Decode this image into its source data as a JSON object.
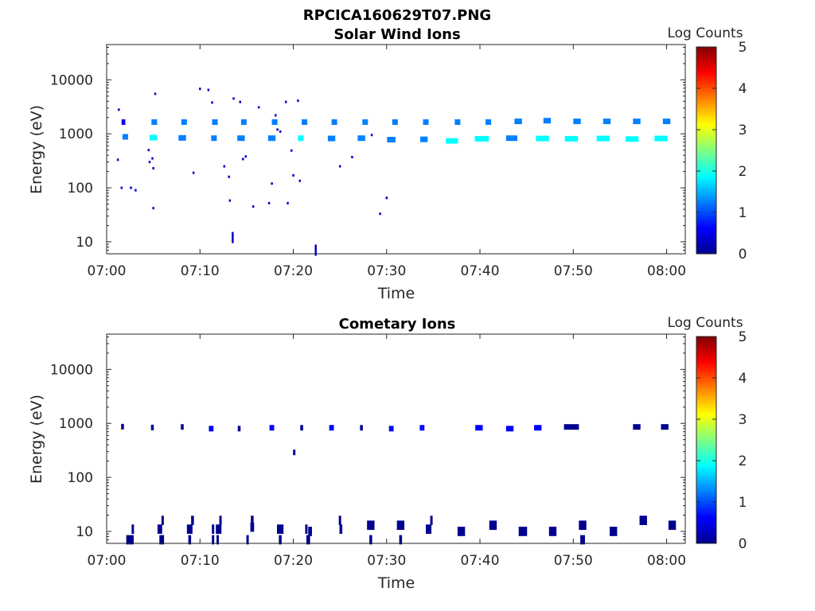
{
  "figure_title": "RPCICA160629T07.PNG",
  "colormap": [
    "#00008f",
    "#0000ff",
    "#0080ff",
    "#00ffff",
    "#80ff80",
    "#ffff00",
    "#ff8000",
    "#ff0000",
    "#800000"
  ],
  "chart_data": [
    {
      "type": "heatmap",
      "title": "Solar Wind Ions",
      "xlabel": "Time",
      "ylabel": "Energy (eV)",
      "x_unit": "minutes after 07:00",
      "xlim": [
        0,
        62
      ],
      "ylim": [
        6,
        45000
      ],
      "yscale": "log",
      "x_ticks": [
        0,
        10,
        20,
        30,
        40,
        50,
        60
      ],
      "x_tick_labels": [
        "07:00",
        "07:10",
        "07:20",
        "07:30",
        "07:40",
        "07:50",
        "08:00"
      ],
      "y_ticks": [
        10,
        100,
        1000,
        10000
      ],
      "y_tick_labels": [
        "10",
        "100",
        "1000",
        "10000"
      ],
      "colorbar": {
        "label": "Log Counts",
        "range": [
          0,
          5
        ],
        "ticks": [
          "0",
          "1",
          "2",
          "3",
          "4",
          "5"
        ]
      },
      "cells": [
        [
          1.8,
          1650,
          0.4,
          0.8
        ],
        [
          2.0,
          880,
          0.6,
          1.2
        ],
        [
          5.1,
          1650,
          0.6,
          1.0
        ],
        [
          5.0,
          850,
          0.8,
          1.6
        ],
        [
          8.3,
          1650,
          0.6,
          1.0
        ],
        [
          8.1,
          840,
          0.8,
          1.4
        ],
        [
          11.6,
          1650,
          0.6,
          1.0
        ],
        [
          11.5,
          830,
          0.6,
          1.2
        ],
        [
          14.7,
          1650,
          0.6,
          1.0
        ],
        [
          14.4,
          830,
          0.8,
          1.4
        ],
        [
          18.0,
          1650,
          0.6,
          1.0
        ],
        [
          17.7,
          830,
          0.8,
          1.4
        ],
        [
          21.2,
          1650,
          0.6,
          1.0
        ],
        [
          20.8,
          830,
          0.6,
          1.8
        ],
        [
          24.4,
          1650,
          0.6,
          1.0
        ],
        [
          24.1,
          820,
          0.8,
          1.4
        ],
        [
          27.7,
          1650,
          0.6,
          1.0
        ],
        [
          27.3,
          830,
          0.8,
          1.4
        ],
        [
          30.9,
          1650,
          0.6,
          1.0
        ],
        [
          30.5,
          780,
          0.9,
          1.4
        ],
        [
          34.2,
          1650,
          0.6,
          1.0
        ],
        [
          34.0,
          790,
          0.8,
          1.4
        ],
        [
          37.6,
          1650,
          0.6,
          1.0
        ],
        [
          37.0,
          740,
          1.3,
          1.6
        ],
        [
          40.9,
          1650,
          0.6,
          1.0
        ],
        [
          40.2,
          810,
          1.5,
          1.6
        ],
        [
          44.1,
          1700,
          0.8,
          1.0
        ],
        [
          43.4,
          830,
          1.2,
          1.4
        ],
        [
          47.2,
          1750,
          0.8,
          1.0
        ],
        [
          46.7,
          820,
          1.4,
          1.6
        ],
        [
          50.4,
          1700,
          0.8,
          1.0
        ],
        [
          49.8,
          810,
          1.4,
          1.6
        ],
        [
          53.6,
          1700,
          0.8,
          1.0
        ],
        [
          53.2,
          820,
          1.4,
          1.6
        ],
        [
          56.8,
          1700,
          0.8,
          1.0
        ],
        [
          56.3,
          800,
          1.4,
          1.6
        ],
        [
          60.0,
          1700,
          0.8,
          1.0
        ],
        [
          59.4,
          820,
          1.4,
          1.6
        ]
      ],
      "points": [
        [
          1.3,
          2800
        ],
        [
          1.2,
          330
        ],
        [
          1.6,
          100
        ],
        [
          2.6,
          100
        ],
        [
          3.1,
          90
        ],
        [
          4.5,
          500
        ],
        [
          4.6,
          300
        ],
        [
          4.9,
          350
        ],
        [
          5.0,
          230
        ],
        [
          5.2,
          5500
        ],
        [
          5.0,
          42
        ],
        [
          9.3,
          190
        ],
        [
          10.0,
          6800
        ],
        [
          10.9,
          6500
        ],
        [
          11.3,
          3800
        ],
        [
          12.6,
          250
        ],
        [
          13.1,
          160
        ],
        [
          13.6,
          4500
        ],
        [
          14.3,
          3900
        ],
        [
          14.6,
          340
        ],
        [
          14.9,
          380
        ],
        [
          15.7,
          45
        ],
        [
          16.3,
          3100
        ],
        [
          17.4,
          52
        ],
        [
          17.7,
          120
        ],
        [
          18.1,
          2200
        ],
        [
          18.3,
          1200
        ],
        [
          18.6,
          1100
        ],
        [
          19.2,
          3900
        ],
        [
          19.8,
          490
        ],
        [
          20.0,
          170
        ],
        [
          20.5,
          4100
        ],
        [
          20.7,
          135
        ],
        [
          19.4,
          52
        ],
        [
          25.0,
          250
        ],
        [
          26.3,
          370
        ],
        [
          28.4,
          950
        ],
        [
          29.3,
          33
        ],
        [
          30.0,
          65
        ],
        [
          13.2,
          58
        ],
        [
          13.5,
          12
        ],
        [
          22.4,
          7
        ]
      ]
    },
    {
      "type": "heatmap",
      "title": "Cometary Ions",
      "xlabel": "Time",
      "ylabel": "Energy (eV)",
      "x_unit": "minutes after 07:00",
      "xlim": [
        0,
        62
      ],
      "ylim": [
        6,
        45000
      ],
      "yscale": "log",
      "x_ticks": [
        0,
        10,
        20,
        30,
        40,
        50,
        60
      ],
      "x_tick_labels": [
        "07:00",
        "07:10",
        "07:20",
        "07:30",
        "07:40",
        "07:50",
        "08:00"
      ],
      "y_ticks": [
        10,
        100,
        1000,
        10000
      ],
      "y_tick_labels": [
        "10",
        "100",
        "1000",
        "10000"
      ],
      "colorbar": {
        "label": "Log Counts",
        "range": [
          0,
          5
        ],
        "ticks": [
          "0",
          "1",
          "2",
          "3",
          "4",
          "5"
        ]
      },
      "cells": [
        [
          1.7,
          870,
          0.3,
          0.3
        ],
        [
          4.9,
          840,
          0.3,
          0.3
        ],
        [
          8.1,
          860,
          0.3,
          0.3
        ],
        [
          11.2,
          800,
          0.5,
          0.4
        ],
        [
          14.2,
          800,
          0.3,
          0.3
        ],
        [
          17.7,
          830,
          0.5,
          0.4
        ],
        [
          20.9,
          830,
          0.3,
          0.3
        ],
        [
          24.1,
          830,
          0.5,
          0.4
        ],
        [
          27.3,
          830,
          0.3,
          0.3
        ],
        [
          30.5,
          800,
          0.5,
          0.4
        ],
        [
          33.8,
          830,
          0.5,
          0.4
        ],
        [
          39.9,
          830,
          0.8,
          0.4
        ],
        [
          43.2,
          800,
          0.8,
          0.4
        ],
        [
          46.2,
          830,
          0.8,
          0.4
        ],
        [
          49.8,
          860,
          1.6,
          0.3
        ],
        [
          56.8,
          860,
          0.8,
          0.3
        ],
        [
          59.8,
          860,
          0.8,
          0.3
        ],
        [
          20.1,
          290,
          0.2,
          0.3
        ],
        [
          2.5,
          7,
          0.8,
          0.3
        ],
        [
          2.8,
          11,
          0.2,
          0.3
        ],
        [
          5.7,
          11,
          0.5,
          0.3
        ],
        [
          5.9,
          7,
          0.5,
          0.3
        ],
        [
          6.0,
          16,
          0.2,
          0.3
        ],
        [
          8.9,
          11,
          0.6,
          0.3
        ],
        [
          9.2,
          16,
          0.3,
          0.3
        ],
        [
          8.9,
          7,
          0.3,
          0.3
        ],
        [
          11.4,
          11,
          0.2,
          0.3
        ],
        [
          11.4,
          7,
          0.2,
          0.3
        ],
        [
          12.0,
          11,
          0.6,
          0.3
        ],
        [
          12.2,
          16,
          0.2,
          0.3
        ],
        [
          11.9,
          7,
          0.2,
          0.3
        ],
        [
          15.6,
          12,
          0.4,
          0.3
        ],
        [
          15.6,
          16,
          0.3,
          0.3
        ],
        [
          15.1,
          7,
          0.2,
          0.3
        ],
        [
          18.6,
          11,
          0.7,
          0.3
        ],
        [
          18.6,
          7,
          0.3,
          0.3
        ],
        [
          21.4,
          11,
          0.2,
          0.3
        ],
        [
          21.8,
          10,
          0.4,
          0.3
        ],
        [
          21.6,
          7,
          0.4,
          0.3
        ],
        [
          25.1,
          11,
          0.3,
          0.3
        ],
        [
          25.0,
          16,
          0.2,
          0.3
        ],
        [
          28.3,
          13,
          0.8,
          0.3
        ],
        [
          28.3,
          7,
          0.3,
          0.3
        ],
        [
          31.5,
          13,
          0.8,
          0.3
        ],
        [
          31.5,
          7,
          0.3,
          0.3
        ],
        [
          34.5,
          11,
          0.6,
          0.3
        ],
        [
          34.8,
          16,
          0.2,
          0.3
        ],
        [
          38.0,
          10,
          0.8,
          0.3
        ],
        [
          41.4,
          13,
          0.8,
          0.3
        ],
        [
          44.6,
          10,
          0.9,
          0.3
        ],
        [
          47.8,
          10,
          0.8,
          0.3
        ],
        [
          51.0,
          13,
          0.8,
          0.3
        ],
        [
          51.0,
          7,
          0.5,
          0.3
        ],
        [
          54.3,
          10,
          0.8,
          0.3
        ],
        [
          57.5,
          16,
          0.8,
          0.3
        ],
        [
          60.6,
          13,
          0.8,
          0.3
        ]
      ],
      "points": []
    }
  ]
}
